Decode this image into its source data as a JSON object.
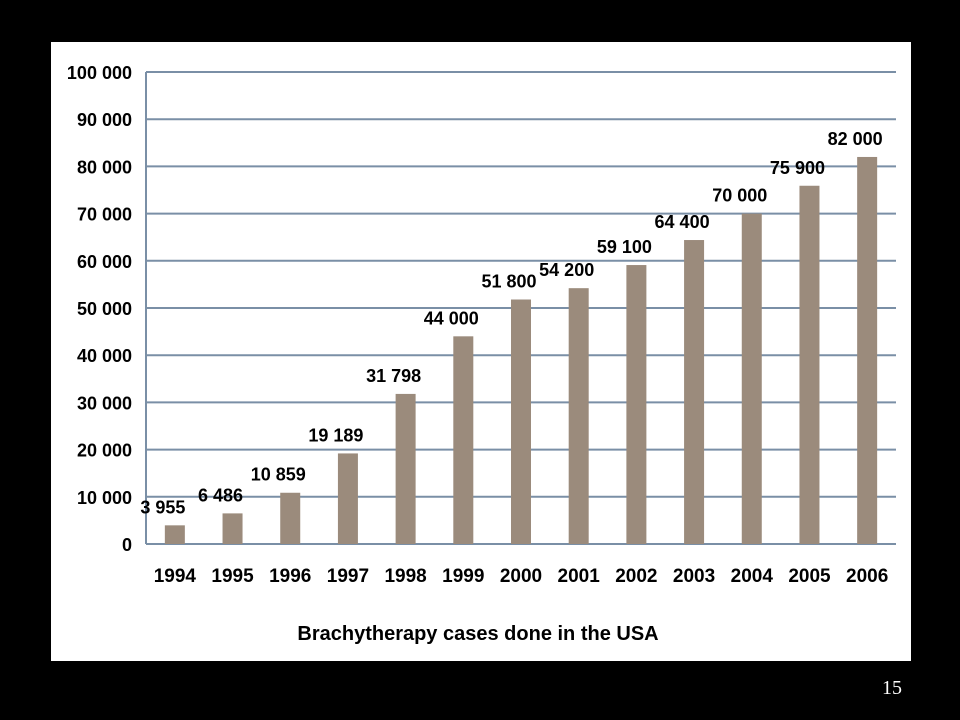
{
  "slide": {
    "page_number": "15"
  },
  "colors": {
    "bar": "#9b8b7c",
    "gridline": "#7a8fa6",
    "panel_background": "#ffffff",
    "slide_background": "#000000"
  },
  "chart_data": {
    "type": "bar",
    "title": "Brachytherapy cases done in the USA",
    "xlabel": "",
    "ylabel": "",
    "ylim": [
      0,
      100000
    ],
    "grid": true,
    "legend": "none",
    "categories": [
      "1994",
      "1995",
      "1996",
      "1997",
      "1998",
      "1999",
      "2000",
      "2001",
      "2002",
      "2003",
      "2004",
      "2005",
      "2006"
    ],
    "values": [
      3955,
      6486,
      10859,
      19189,
      31798,
      44000,
      51800,
      54200,
      59100,
      64400,
      70000,
      75900,
      82000
    ],
    "data_labels": [
      "3 955",
      "6 486",
      "10 859",
      "19 189",
      "31 798",
      "44 000",
      "51 800",
      "54 200",
      "59 100",
      "64 400",
      "70 000",
      "75 900",
      "82 000"
    ],
    "y_ticks": [
      0,
      10000,
      20000,
      30000,
      40000,
      50000,
      60000,
      70000,
      80000,
      90000,
      100000
    ],
    "y_tick_labels": [
      "0",
      "10 000",
      "20 000",
      "30 000",
      "40 000",
      "50 000",
      "60 000",
      "70 000",
      "80 000",
      "90 000",
      "100 000"
    ]
  }
}
